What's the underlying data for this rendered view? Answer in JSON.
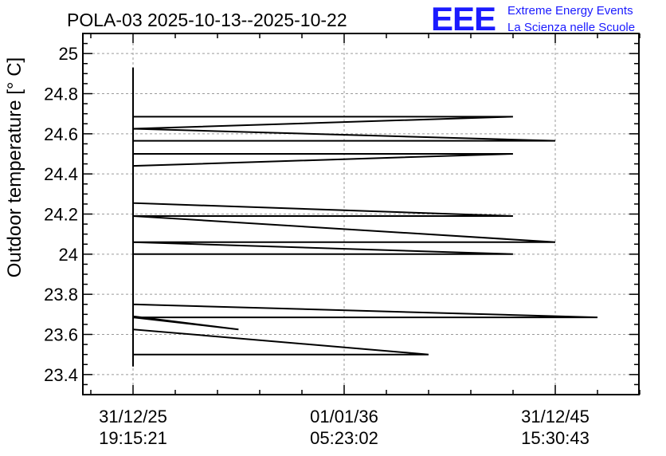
{
  "chart_data": {
    "type": "line",
    "title": "POLA-03 2025-10-13--2025-10-22",
    "ylabel": "Outdoor temperature [° C]",
    "xlabel": "",
    "ylim": [
      23.3,
      25.1
    ],
    "y_ticks": [
      23.4,
      23.6,
      23.8,
      24,
      24.2,
      24.4,
      24.6,
      24.8,
      25
    ],
    "y_tick_labels": [
      "23.4",
      "23.6",
      "23.8",
      "24",
      "24.2",
      "24.4",
      "24.6",
      "24.8",
      "25"
    ],
    "x_ticks": [
      {
        "date": "31/12/25",
        "time": "19:15:21"
      },
      {
        "date": "01/01/36",
        "time": "05:23:02"
      },
      {
        "date": "31/12/45",
        "time": "15:30:43"
      }
    ],
    "grid": true,
    "series": [
      {
        "values": [
          {
            "x": "31/12/25 19:15:21",
            "y": 24.93
          },
          {
            "x": "31/12/25 19:15:21",
            "y": 23.44
          },
          {
            "x": "31/12/25 19:15:21",
            "y": 23.5
          },
          {
            "x": "31/12/39 00:00:00",
            "y": 23.5
          },
          {
            "x": "31/12/25 19:15:21",
            "y": 23.625
          },
          {
            "x": "31/12/25 19:15:21",
            "y": 23.69
          },
          {
            "x": "31/12/30 06:00:00",
            "y": 23.625
          },
          {
            "x": "31/12/25 19:15:21",
            "y": 23.685
          },
          {
            "x": "31/12/47 12:00:00",
            "y": 23.685
          },
          {
            "x": "31/12/25 19:15:21",
            "y": 23.75
          },
          {
            "x": "31/12/25 19:15:21",
            "y": 24.0
          },
          {
            "x": "31/12/43 06:00:00",
            "y": 24.0
          },
          {
            "x": "31/12/25 19:15:21",
            "y": 24.06
          },
          {
            "x": "31/12/45 15:30:43",
            "y": 24.06
          },
          {
            "x": "31/12/25 19:15:21",
            "y": 24.19
          },
          {
            "x": "31/12/43 00:00:00",
            "y": 24.19
          },
          {
            "x": "31/12/25 19:15:21",
            "y": 24.255
          },
          {
            "x": "31/12/25 19:15:21",
            "y": 24.44
          },
          {
            "x": "31/12/43 09:00:00",
            "y": 24.5
          },
          {
            "x": "31/12/25 19:15:21",
            "y": 24.5
          },
          {
            "x": "31/12/25 19:15:21",
            "y": 24.565
          },
          {
            "x": "31/12/45 15:30:43",
            "y": 24.565
          },
          {
            "x": "31/12/25 19:15:21",
            "y": 24.625
          },
          {
            "x": "31/12/43 06:00:00",
            "y": 24.685
          },
          {
            "x": "31/12/25 19:15:21",
            "y": 24.685
          }
        ]
      }
    ]
  },
  "logo": {
    "mark": "EEE",
    "line1": "Extreme Energy Events",
    "line2": "La Scienza nelle Scuole"
  }
}
